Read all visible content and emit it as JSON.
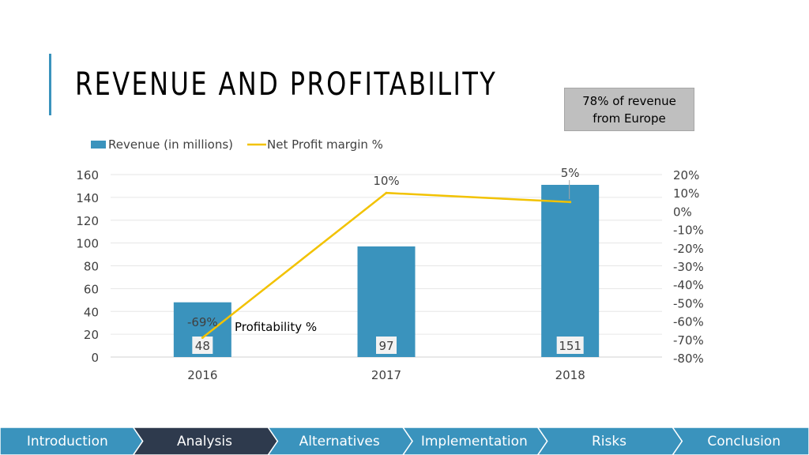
{
  "slide": {
    "title": "REVENUE AND PROFITABILITY",
    "callout": "78% of revenue from Europe"
  },
  "colors": {
    "accent": "#3a93bd",
    "bar": "#3a93bd",
    "line": "#f2c200",
    "nav_bg": "#3a93bd",
    "nav_active": "#2e3a4d"
  },
  "chart_data": {
    "type": "bar",
    "categories": [
      "2016",
      "2017",
      "2018"
    ],
    "series": [
      {
        "name": "Revenue (in millions)",
        "type": "bar",
        "axis": "left",
        "values": [
          48,
          97,
          151
        ],
        "labels": [
          "48",
          "97",
          "151"
        ]
      },
      {
        "name": "Net Profit margin %",
        "type": "line",
        "axis": "right",
        "values": [
          -69,
          10,
          5
        ],
        "labels": [
          "-69%",
          "10%",
          "5%"
        ]
      }
    ],
    "y_left": {
      "min": 0,
      "max": 160,
      "step": 20,
      "ticks": [
        "0",
        "20",
        "40",
        "60",
        "80",
        "100",
        "120",
        "140",
        "160"
      ]
    },
    "y_right": {
      "min": -80,
      "max": 20,
      "step": 10,
      "ticks": [
        "-80%",
        "-70%",
        "-60%",
        "-50%",
        "-40%",
        "-30%",
        "-20%",
        "-10%",
        "0%",
        "10%",
        "20%"
      ]
    },
    "annotation": "Profitability %",
    "legend_position": "top-left",
    "grid": true
  },
  "nav": {
    "active": "Analysis",
    "items": [
      "Introduction",
      "Analysis",
      "Alternatives",
      "Implementation",
      "Risks",
      "Conclusion"
    ]
  }
}
